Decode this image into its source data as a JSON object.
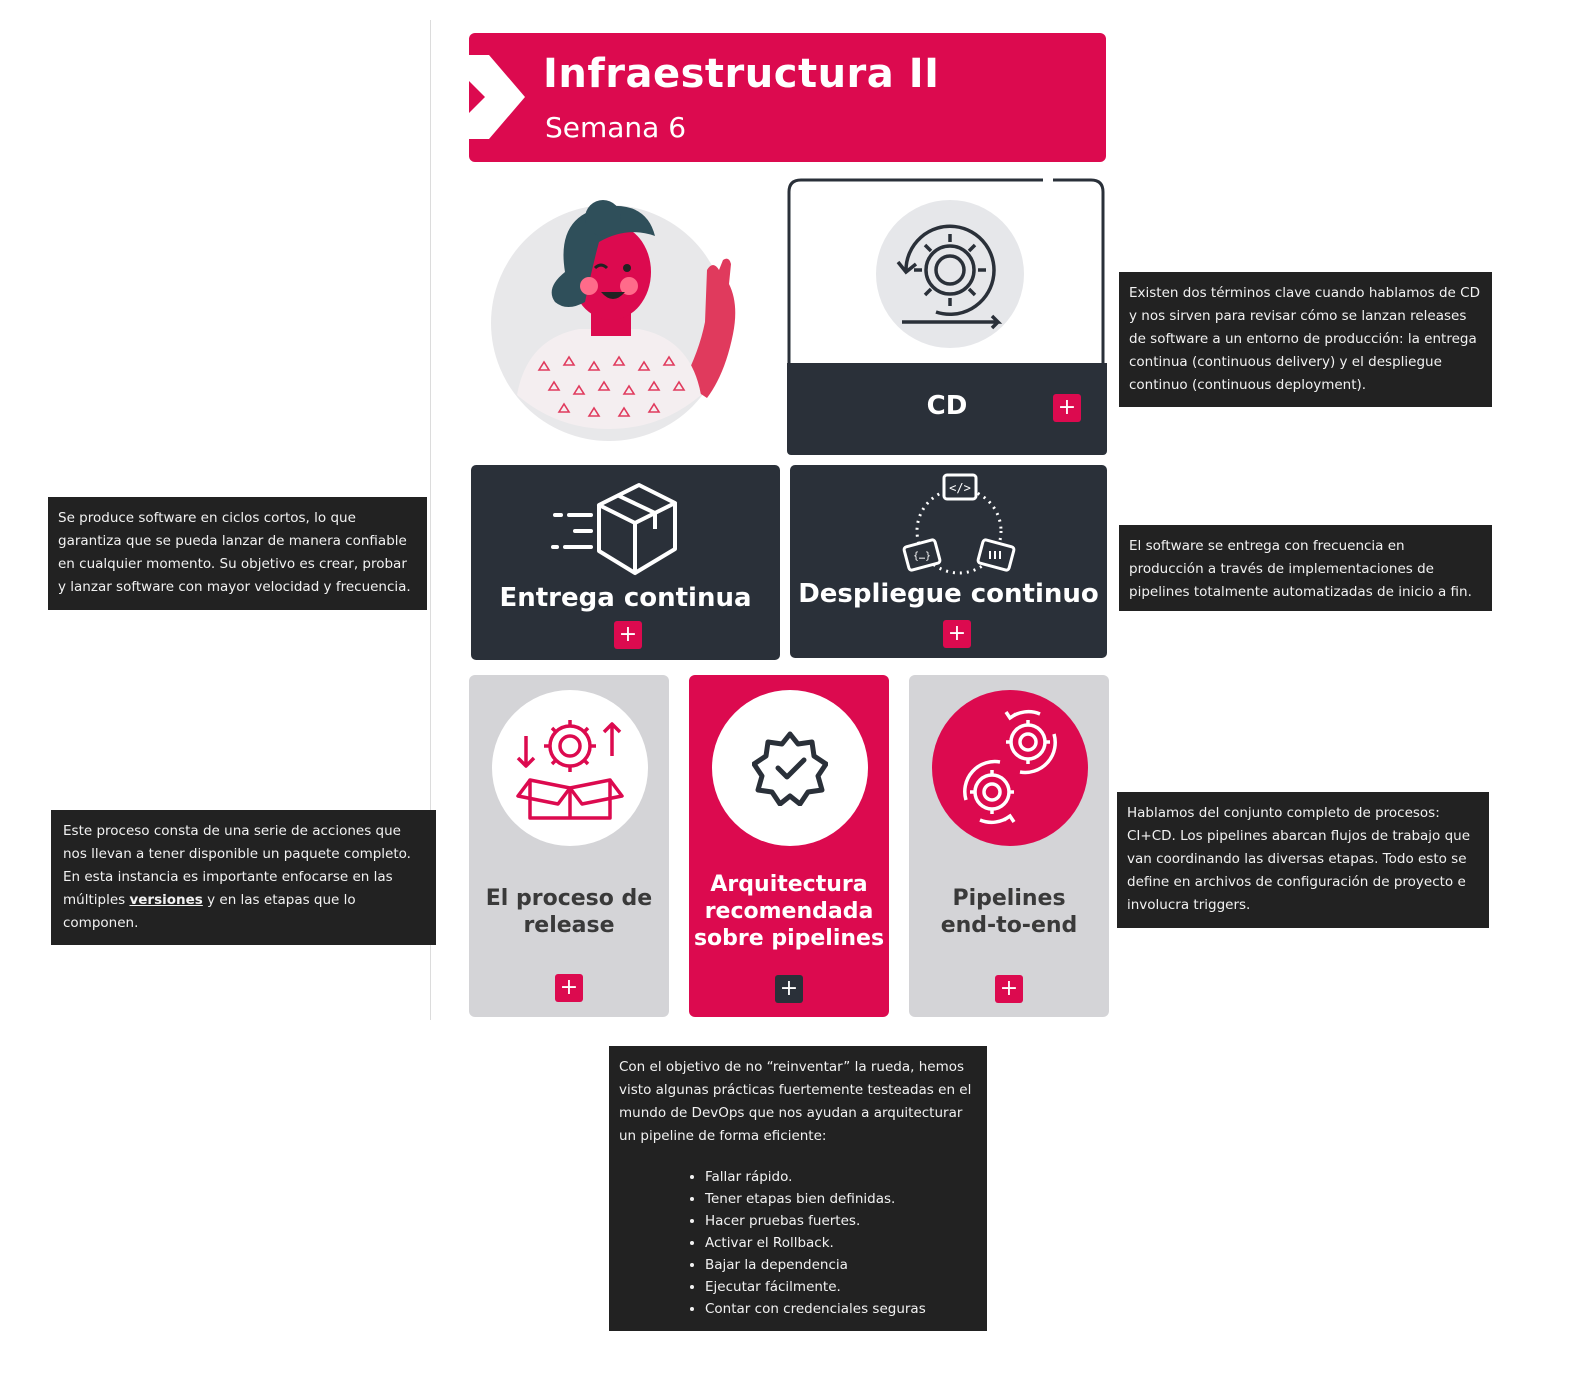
{
  "header": {
    "title": "Infraestructura II",
    "subtitle": "Semana 6",
    "colors": {
      "brand": "#dc0a4f",
      "dark": "#2a3039",
      "tile_gray": "#d4d4d7",
      "note_bg": "#222222"
    }
  },
  "cards": {
    "cd": {
      "label": "CD",
      "icon": "gear-cycle-icon"
    },
    "entrega": {
      "label": "Entrega continua",
      "icon": "package-icon"
    },
    "despliegue": {
      "label": "Despliegue continuo",
      "icon": "deploy-cycle-icon"
    }
  },
  "tiles": {
    "release": {
      "label1": "El proceso de",
      "label2": "release",
      "icon": "release-box-icon"
    },
    "arquitectura": {
      "label1": "Arquitectura",
      "label2": "recomendada",
      "label3": "sobre pipelines",
      "icon": "badge-check-icon"
    },
    "pipelines": {
      "label1": "Pipelines",
      "label2": "end-to-end",
      "icon": "gears-loop-icon"
    }
  },
  "plus_label": "+",
  "notes": {
    "cd": "Existen dos términos clave cuando hablamos de CD y nos sirven para revisar cómo se lanzan releases de software a un entorno de producción: la entrega continua (continuous delivery) y el despliegue continuo (continuous deployment).",
    "entrega": "Se produce software en ciclos cortos, lo que garantiza que se pueda lanzar de manera confiable en cualquier momento. Su objetivo es crear, probar y lanzar software con mayor velocidad y frecuencia.",
    "despliegue": "El software se entrega con frecuencia en producción a través de implementaciones de pipelines totalmente automatizadas de inicio a fin.",
    "release": {
      "before": "Este proceso consta de una serie de acciones que nos llevan a tener disponible un paquete completo. En esta instancia es importante enfocarse en las múltiples ",
      "link": "versiones",
      "after": " y en las etapas que lo componen."
    },
    "pipelines": "Hablamos del conjunto completo de procesos: CI+CD. Los pipelines abarcan flujos de trabajo que van coordinando las diversas etapas. Todo esto se define en archivos de configuración de proyecto e involucra triggers.",
    "arquitectura": {
      "intro": "Con el objetivo de no “reinventar” la rueda, hemos visto algunas prácticas fuertemente testeadas en el mundo de DevOps que nos ayudan a arquitecturar un pipeline de forma eficiente:",
      "items": [
        "Fallar rápido.",
        "Tener etapas bien definidas.",
        "Hacer pruebas fuertes.",
        "Activar el Rollback.",
        "Bajar la dependencia",
        " Ejecutar fácilmente.",
        "Contar con credenciales seguras"
      ]
    }
  }
}
